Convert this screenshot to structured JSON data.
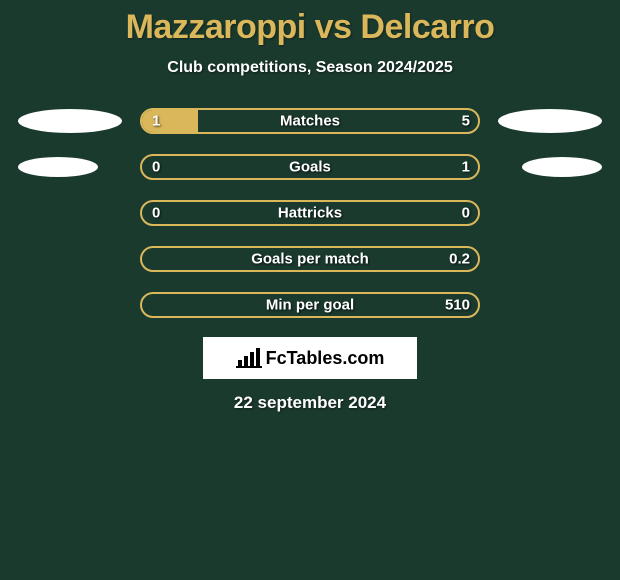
{
  "title": "Mazzaroppi vs Delcarro",
  "subtitle": "Club competitions, Season 2024/2025",
  "colors": {
    "background": "#1b3a2e",
    "accent": "#d9b75a",
    "text": "#ffffff",
    "ellipse": "#ffffff"
  },
  "ellipses": {
    "left": [
      {
        "width": 104,
        "height": 24
      },
      {
        "width": 80,
        "height": 20
      }
    ],
    "right": [
      {
        "width": 104,
        "height": 24
      },
      {
        "width": 80,
        "height": 20
      }
    ]
  },
  "bars": {
    "track_width": 340,
    "track_height": 26,
    "border_color": "#d9b75a",
    "fill_color": "#d9b75a"
  },
  "stats": [
    {
      "label": "Matches",
      "left_val": "1",
      "right_val": "5",
      "left_pct": 16.7,
      "right_pct": 0,
      "ellipse_row": 0
    },
    {
      "label": "Goals",
      "left_val": "0",
      "right_val": "1",
      "left_pct": 0,
      "right_pct": 0,
      "ellipse_row": 1
    },
    {
      "label": "Hattricks",
      "left_val": "0",
      "right_val": "0",
      "left_pct": 0,
      "right_pct": 0,
      "ellipse_row": -1
    },
    {
      "label": "Goals per match",
      "left_val": "",
      "right_val": "0.2",
      "left_pct": 0,
      "right_pct": 0,
      "ellipse_row": -1
    },
    {
      "label": "Min per goal",
      "left_val": "",
      "right_val": "510",
      "left_pct": 0,
      "right_pct": 0,
      "ellipse_row": -1
    }
  ],
  "brand": "FcTables.com",
  "date": "22 september 2024"
}
